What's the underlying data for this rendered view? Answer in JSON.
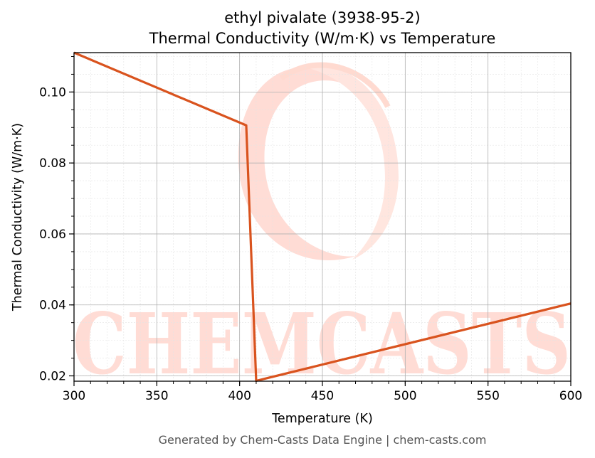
{
  "chart_data": {
    "type": "line",
    "title_line1": "ethyl pivalate (3938-95-2)",
    "title_line2": "Thermal Conductivity (W/m·K) vs Temperature",
    "xlabel": "Temperature (K)",
    "ylabel": "Thermal Conductivity (W/m·K)",
    "xlim": [
      300,
      600
    ],
    "ylim": [
      0.0185,
      0.1111
    ],
    "xticks": [
      300,
      350,
      400,
      450,
      500,
      550,
      600
    ],
    "xtick_labels": [
      "300",
      "350",
      "400",
      "450",
      "500",
      "550",
      "600"
    ],
    "yticks": [
      0.02,
      0.04,
      0.06,
      0.08,
      0.1
    ],
    "ytick_labels": [
      "0.02",
      "0.04",
      "0.06",
      "0.08",
      "0.10"
    ],
    "grid": true,
    "series": [
      {
        "color": "#d9531e",
        "points": [
          [
            300,
            0.1111
          ],
          [
            404,
            0.0906
          ],
          [
            410,
            0.0186
          ],
          [
            600,
            0.0404
          ]
        ]
      }
    ],
    "watermark": "CHEMCASTS",
    "footer": "Generated by Chem-Casts Data Engine | chem-casts.com"
  }
}
